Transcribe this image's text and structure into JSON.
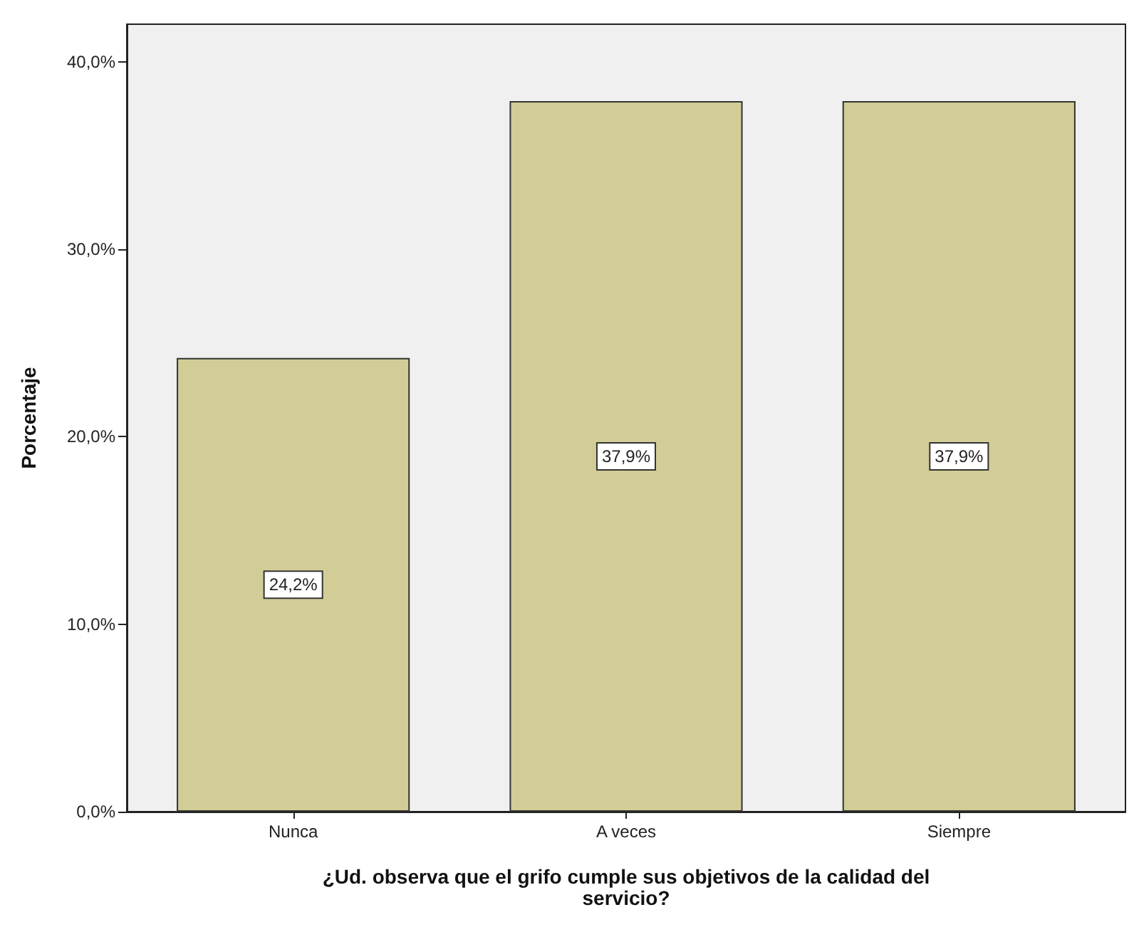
{
  "chart_data": {
    "type": "bar",
    "xlabel": "¿Ud. observa que el grifo cumple sus objetivos de la calidad del servicio?",
    "ylabel": "Porcentaje",
    "categories": [
      "Nunca",
      "A veces",
      "Siempre"
    ],
    "values": [
      24.2,
      37.9,
      37.9
    ],
    "value_labels": [
      "24,2%",
      "37,9%",
      "37,9%"
    ],
    "color": "#d2cd96",
    "ylim": [
      0,
      42
    ],
    "yticks": [
      {
        "value": 0,
        "label": "0,0%"
      },
      {
        "value": 10,
        "label": "10,0%"
      },
      {
        "value": 20,
        "label": "20,0%"
      },
      {
        "value": 30,
        "label": "30,0%"
      },
      {
        "value": 40,
        "label": "40,0%"
      }
    ],
    "grid": false
  }
}
